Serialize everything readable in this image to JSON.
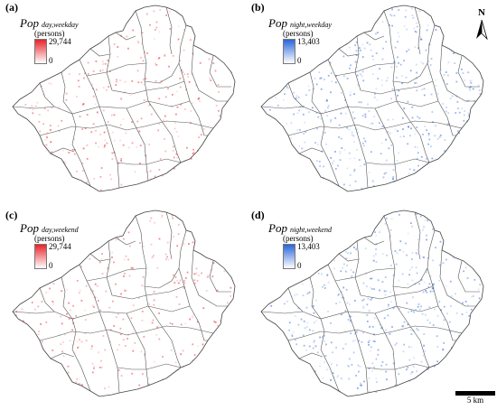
{
  "panels": [
    {
      "label": "(a)",
      "legend_pop": "Pop",
      "legend_subscript": "day,weekday",
      "legend_unit": "(persons)",
      "legend_max": "29,744",
      "legend_min": "0",
      "color_scale": "red",
      "color": "#e8232b"
    },
    {
      "label": "(b)",
      "legend_pop": "Pop",
      "legend_subscript": "night,weekday",
      "legend_unit": "(persons)",
      "legend_max": "13,403",
      "legend_min": "0",
      "color_scale": "blue",
      "color": "#2a66d8"
    },
    {
      "label": "(c)",
      "legend_pop": "Pop",
      "legend_subscript": "day,weekend",
      "legend_unit": "(persons)",
      "legend_max": "29,744",
      "legend_min": "0",
      "color_scale": "red",
      "color": "#e8232b"
    },
    {
      "label": "(d)",
      "legend_pop": "Pop",
      "legend_subscript": "night,weekend",
      "legend_unit": "(persons)",
      "legend_max": "13,403",
      "legend_min": "0",
      "color_scale": "blue",
      "color": "#2a66d8"
    }
  ],
  "north_arrow": {
    "letter": "N",
    "icon": "north-arrow-icon"
  },
  "scale_bar": {
    "label": "5 km"
  }
}
